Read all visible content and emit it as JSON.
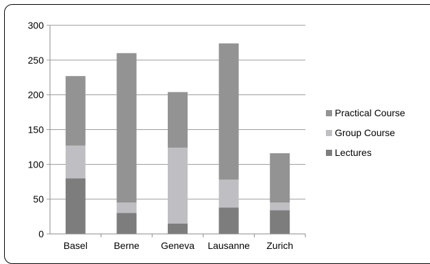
{
  "chart_data": {
    "type": "bar",
    "stacked": true,
    "categories": [
      "Basel",
      "Berne",
      "Geneva",
      "Lausanne",
      "Zurich"
    ],
    "series": [
      {
        "name": "Lectures",
        "values": [
          80,
          30,
          15,
          38,
          34
        ],
        "color": "#7d7d7d"
      },
      {
        "name": "Group Course",
        "values": [
          47,
          15,
          109,
          40,
          11
        ],
        "color": "#bfbfc3"
      },
      {
        "name": "Practical Course",
        "values": [
          100,
          215,
          80,
          196,
          71
        ],
        "color": "#939393"
      }
    ],
    "ylim": [
      0,
      300
    ],
    "yticks": [
      "0",
      "50",
      "100",
      "150",
      "200",
      "250",
      "300"
    ],
    "grid": true,
    "legend": {
      "position": "right",
      "entries": [
        "Practical Course",
        "Group Course",
        "Lectures"
      ]
    }
  }
}
